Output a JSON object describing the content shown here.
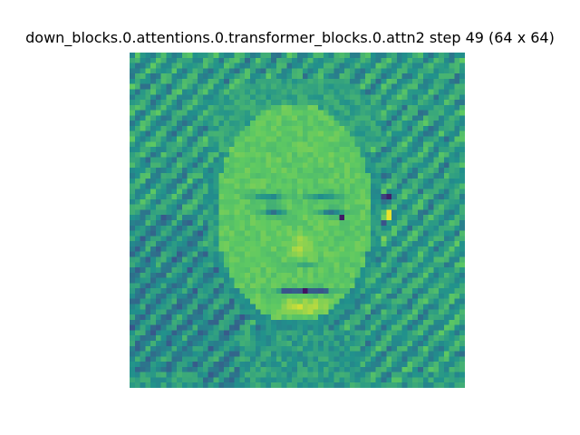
{
  "chart_data": {
    "type": "heatmap",
    "title": "down_blocks.0.attentions.0.transformer_blocks.0.attn2 step 49 (64 x 64)",
    "xlabel": "",
    "ylabel": "",
    "grid": false,
    "axes_visible": false,
    "colormap": "viridis",
    "colormap_stops": [
      "#440154",
      "#3b528b",
      "#21918c",
      "#5ec962",
      "#fde725"
    ],
    "rows": 64,
    "cols": 64,
    "value_range": [
      0,
      1
    ],
    "content": "attention map resembling a face (smiling man)"
  }
}
